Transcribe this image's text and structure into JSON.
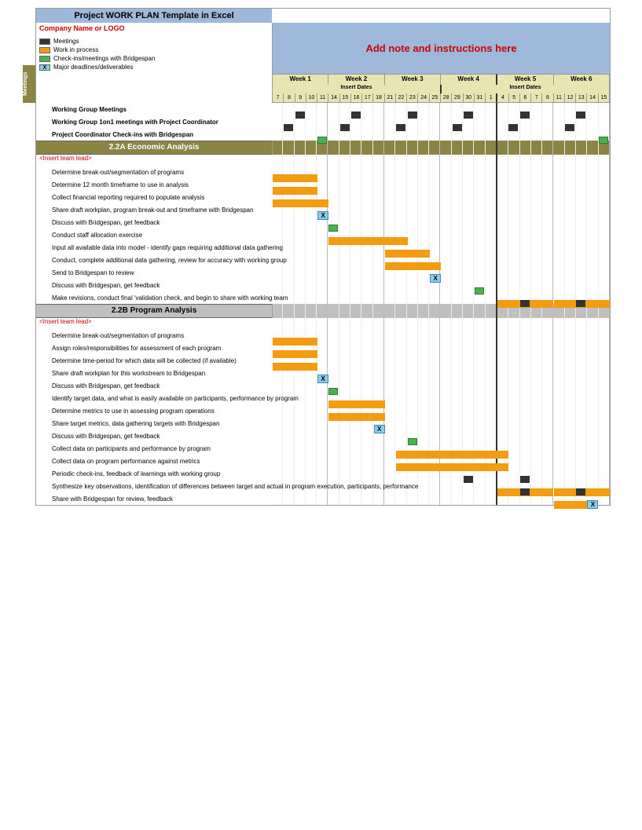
{
  "title": "Project WORK PLAN Template in Excel",
  "company": "Company Name or LOGO",
  "note": "Add note and instructions here",
  "legend": [
    {
      "label": "Meetings",
      "color": "#333333"
    },
    {
      "label": "Work in process",
      "color": "#f39c12"
    },
    {
      "label": "Check-ins/meetings with Bridgespan",
      "color": "#4caf50"
    },
    {
      "label": "Major deadlines/deliverables",
      "color": "#87ceeb",
      "mark": "X"
    }
  ],
  "colors": {
    "header_bg": "#9db8d9",
    "olive": "#8a8445",
    "week_bg": "#e9e5b2",
    "gray_section": "#c0c0c0",
    "wip": "#f39c12",
    "meeting": "#333333",
    "checkin": "#4caf50",
    "deliverable": "#87ceeb",
    "red": "#c00000"
  },
  "weeks": [
    "Week 1",
    "Week 2",
    "Week 3",
    "Week 4",
    "Week 5",
    "Week 6"
  ],
  "insert_dates_label": "Insert Dates",
  "dates": [
    "7",
    "8",
    "9",
    "10",
    "11",
    "14",
    "15",
    "16",
    "17",
    "18",
    "21",
    "22",
    "23",
    "24",
    "25",
    "28",
    "29",
    "30",
    "31",
    "1",
    "4",
    "5",
    "6",
    "7",
    "8",
    "11",
    "12",
    "13",
    "14",
    "15"
  ],
  "meetings_label": "Meetings",
  "meeting_rows": [
    {
      "label": "Working Group Meetings",
      "marks": [
        {
          "t": "mtg",
          "d": 2
        },
        {
          "t": "mtg",
          "d": 7
        },
        {
          "t": "mtg",
          "d": 12
        },
        {
          "t": "mtg",
          "d": 17
        },
        {
          "t": "mtg",
          "d": 22
        },
        {
          "t": "mtg",
          "d": 27
        }
      ]
    },
    {
      "label": "Working Group 1on1 meetings with Project Coordinator",
      "marks": [
        {
          "t": "mtg",
          "d": 1
        },
        {
          "t": "mtg",
          "d": 6
        },
        {
          "t": "mtg",
          "d": 11
        },
        {
          "t": "mtg",
          "d": 16
        },
        {
          "t": "mtg",
          "d": 21
        },
        {
          "t": "mtg",
          "d": 26
        }
      ]
    },
    {
      "label": "Project Coordinator Check-ins with Bridgespan",
      "marks": [
        {
          "t": "chk",
          "d": 4
        },
        {
          "t": "chk",
          "d": 29
        }
      ]
    }
  ],
  "sections": [
    {
      "title": "2.2A Economic Analysis",
      "style": "olive",
      "team_lead": "<Insert team lead>",
      "rows": [
        {
          "label": "Determine break-out/segmentation of programs",
          "bars": [
            {
              "t": "wip",
              "s": 0,
              "e": 4
            }
          ]
        },
        {
          "label": "Determine 12 month timeframe to use in analysis",
          "bars": [
            {
              "t": "wip",
              "s": 0,
              "e": 4
            }
          ]
        },
        {
          "label": "Collect financial reporting required to populate analysis",
          "bars": [
            {
              "t": "wip",
              "s": 0,
              "e": 5
            }
          ]
        },
        {
          "label": "Share draft workplan, program break-out and timeframe with Bridgespan",
          "bars": [
            {
              "t": "dlv",
              "d": 4
            }
          ]
        },
        {
          "label": "Discuss with Bridgespan, get feedback",
          "bars": [
            {
              "t": "chk",
              "d": 5
            }
          ]
        },
        {
          "label": "Conduct staff allocation exercise",
          "bars": [
            {
              "t": "wip",
              "s": 5,
              "e": 12
            }
          ]
        },
        {
          "label": "Input all available data into model - identify gaps requiring additional data gathering",
          "bars": [
            {
              "t": "wip",
              "s": 10,
              "e": 14
            }
          ]
        },
        {
          "label": "Conduct, complete additional data gathering, review for accuracy with working group",
          "bars": [
            {
              "t": "wip",
              "s": 10,
              "e": 15
            }
          ]
        },
        {
          "label": "Send to Bridgespan to review",
          "bars": [
            {
              "t": "dlv",
              "d": 14
            }
          ]
        },
        {
          "label": "Discuss with Bridgespan, get feedback",
          "bars": [
            {
              "t": "chk",
              "d": 18
            }
          ]
        },
        {
          "label": "Make revisions, conduct final 'validation check, and begin to share with working team",
          "bars": [
            {
              "t": "wip",
              "s": 20,
              "e": 25
            },
            {
              "t": "mtg",
              "d": 22
            },
            {
              "t": "wip",
              "s": 25,
              "e": 30
            },
            {
              "t": "mtg",
              "d": 27
            }
          ]
        }
      ]
    },
    {
      "title": "2.2B Program Analysis",
      "style": "gray",
      "team_lead": "<Insert team lead>",
      "rows": [
        {
          "label": "Determine  break-out/segmentation of programs",
          "bars": [
            {
              "t": "wip",
              "s": 0,
              "e": 4
            }
          ]
        },
        {
          "label": "Assign roles/responsibilities for assessment of each program",
          "bars": [
            {
              "t": "wip",
              "s": 0,
              "e": 4
            }
          ]
        },
        {
          "label": "Determine time-period for which data will be collected (if available)",
          "bars": [
            {
              "t": "wip",
              "s": 0,
              "e": 4
            }
          ]
        },
        {
          "label": "Share draft workplan for this workstream to Bridgespan",
          "bars": [
            {
              "t": "dlv",
              "d": 4
            }
          ]
        },
        {
          "label": "Discuss with Bridgespan, get feedback",
          "bars": [
            {
              "t": "chk",
              "d": 5
            }
          ]
        },
        {
          "label": "Identify target data, and what is easily available on participants, performance by program",
          "bars": [
            {
              "t": "wip",
              "s": 5,
              "e": 10
            }
          ]
        },
        {
          "label": "Determine metrics to use in assessing program operations",
          "bars": [
            {
              "t": "wip",
              "s": 5,
              "e": 10
            }
          ]
        },
        {
          "label": "Share target metrics, data gathering targets with Bridgespan",
          "bars": [
            {
              "t": "dlv",
              "d": 9
            }
          ]
        },
        {
          "label": "Discuss with Bridgespan, get feedback",
          "bars": [
            {
              "t": "chk",
              "d": 12
            }
          ]
        },
        {
          "label": "Collect data on participants and performance by program",
          "bars": [
            {
              "t": "wip",
              "s": 11,
              "e": 21
            }
          ]
        },
        {
          "label": "Collect data on program performance against metrics",
          "bars": [
            {
              "t": "wip",
              "s": 11,
              "e": 21
            }
          ]
        },
        {
          "label": "Periodic check-ins, feedback of learnings with working group",
          "bars": [
            {
              "t": "mtg",
              "d": 17
            },
            {
              "t": "mtg",
              "d": 22
            }
          ]
        },
        {
          "label": "Synthesize key observations, identification of differences between target and actual in program  execution, participants, performance",
          "bars": [
            {
              "t": "wip",
              "s": 20,
              "e": 25
            },
            {
              "t": "mtg",
              "d": 22
            },
            {
              "t": "wip",
              "s": 25,
              "e": 30
            },
            {
              "t": "mtg",
              "d": 27
            }
          ]
        },
        {
          "label": "Share with Bridgespan for review, feedback",
          "bars": [
            {
              "t": "wip",
              "s": 25,
              "e": 28
            },
            {
              "t": "dlv",
              "d": 28
            }
          ]
        }
      ]
    }
  ]
}
